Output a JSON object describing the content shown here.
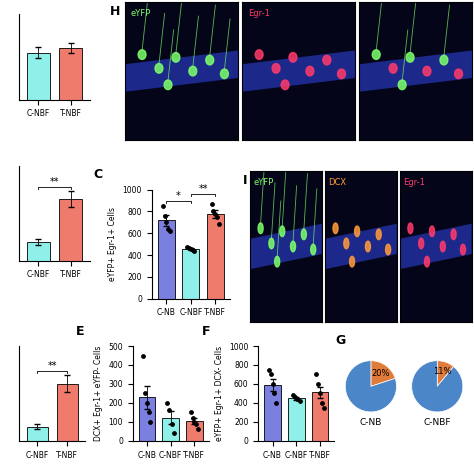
{
  "chart_data": [
    {
      "type": "bar",
      "categories": [
        "C-NBF",
        "T-NBF"
      ],
      "values": [
        5.5,
        6.0
      ],
      "errors": [
        0.6,
        0.6
      ],
      "colors": [
        "#8ff0ea",
        "#ef7b6d"
      ],
      "ylim": [
        0,
        10
      ],
      "tick_labels": "x"
    },
    {
      "type": "bar",
      "categories": [
        "C-NBF",
        "T-NBF"
      ],
      "values": [
        2.0,
        6.5
      ],
      "errors": [
        0.3,
        0.8
      ],
      "colors": [
        "#8ff0ea",
        "#ef7b6d"
      ],
      "ylim": [
        0,
        10
      ],
      "tick_labels": "x",
      "annotations": [
        {
          "label": "**",
          "between": [
            "C-NBF",
            "T-NBF"
          ]
        }
      ]
    },
    {
      "type": "bar",
      "panel_label": "C",
      "y_label": "eYFP+ Egr-1+ Cells",
      "categories": [
        "C-NB",
        "C-NBF",
        "T-NBF"
      ],
      "values": [
        720,
        455,
        776
      ],
      "errors": [
        50,
        10,
        35
      ],
      "points": [
        [
          850,
          760,
          700,
          640,
          620
        ],
        [
          470,
          460,
          455,
          450,
          440
        ],
        [
          870,
          800,
          780,
          750,
          680
        ]
      ],
      "colors": [
        "#7b7fe0",
        "#8ff0ea",
        "#ef7b6d"
      ],
      "ylim": [
        0,
        1000
      ],
      "yticks": [
        0,
        200,
        400,
        600,
        800,
        1000
      ],
      "annotations": [
        {
          "label": "*",
          "between": [
            "C-NB",
            "C-NBF"
          ]
        },
        {
          "label": "**",
          "between": [
            "C-NBF",
            "T-NBF"
          ]
        }
      ]
    },
    {
      "type": "bar",
      "categories": [
        "C-NBF",
        "T-NBF"
      ],
      "values": [
        1.5,
        6.0
      ],
      "errors": [
        0.3,
        0.9
      ],
      "colors": [
        "#8ff0ea",
        "#ef7b6d"
      ],
      "ylim": [
        0,
        10
      ],
      "tick_labels": "x",
      "annotations": [
        {
          "label": "**",
          "between": [
            "C-NBF",
            "T-NBF"
          ]
        }
      ]
    },
    {
      "type": "bar",
      "panel_label": "E",
      "y_label": "DCX+ Egr-1+ eYFP- Cells",
      "categories": [
        "C-NB",
        "C-NBF",
        "T-NBF"
      ],
      "values": [
        230,
        122,
        104
      ],
      "errors": [
        60,
        35,
        15
      ],
      "points": [
        [
          450,
          250,
          200,
          150,
          100
        ],
        [
          200,
          160,
          90,
          40
        ],
        [
          150,
          120,
          100,
          90,
          60
        ]
      ],
      "colors": [
        "#7b7fe0",
        "#8ff0ea",
        "#ef7b6d"
      ],
      "ylim": [
        0,
        500
      ],
      "yticks": [
        0,
        100,
        200,
        300,
        400,
        500
      ]
    },
    {
      "type": "bar",
      "panel_label": "F",
      "y_label": "eYFP+ Egr-1+ DCX- Cells",
      "categories": [
        "C-NB",
        "C-NBF",
        "T-NBF"
      ],
      "values": [
        590,
        450,
        510
      ],
      "errors": [
        65,
        15,
        60
      ],
      "points": [
        [
          750,
          700,
          600,
          500,
          400
        ],
        [
          480,
          460,
          440,
          420
        ],
        [
          700,
          600,
          500,
          400,
          350
        ]
      ],
      "colors": [
        "#7b7fe0",
        "#8ff0ea",
        "#ef7b6d"
      ],
      "ylim": [
        0,
        1000
      ],
      "yticks": [
        0,
        200,
        400,
        600,
        800,
        1000
      ]
    },
    {
      "type": "pie",
      "panel_label": "G",
      "title": "C-NB",
      "values": [
        20,
        80
      ],
      "value_labels": [
        "20%",
        null
      ],
      "colors": [
        "#e07b39",
        "#4a86c8"
      ]
    },
    {
      "type": "pie",
      "title": "C-NBF",
      "values": [
        11,
        89
      ],
      "value_labels": [
        "11%",
        null
      ],
      "colors": [
        "#e07b39",
        "#4a86c8"
      ]
    }
  ],
  "image_panels": [
    {
      "panel_label": "H",
      "tiles": [
        {
          "label": "eYFP",
          "color": "#7dff6a"
        },
        {
          "label": "Egr-1",
          "color": "#ff3a6a"
        },
        {
          "label": null
        }
      ]
    },
    {
      "panel_label": "I",
      "tiles": [
        {
          "label": "eYFP",
          "color": "#7dff6a"
        },
        {
          "label": "DCX",
          "color": "#ff9a3a"
        },
        {
          "label": "Egr-1",
          "color": "#ff3a6a"
        }
      ]
    }
  ]
}
